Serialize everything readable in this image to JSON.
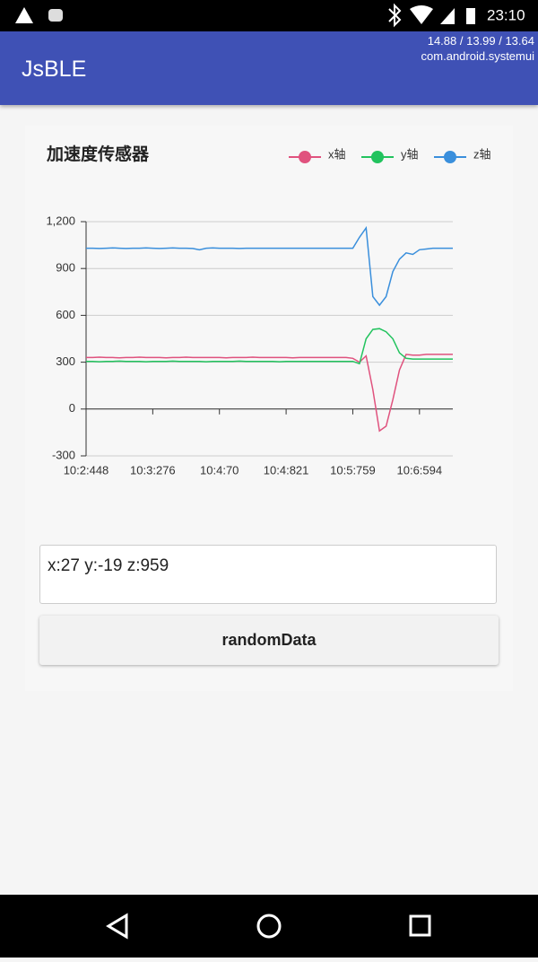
{
  "status_bar": {
    "time": "23:10"
  },
  "debug_overlay": {
    "fps": "14.88 / 13.99 / 13.64",
    "process": "com.android.systemui"
  },
  "app_bar": {
    "title": "JsBLE"
  },
  "chart_data": {
    "type": "line",
    "title": "加速度传感器",
    "categories": [
      "10:2:448",
      null,
      null,
      null,
      null,
      null,
      null,
      null,
      null,
      null,
      "10:3:276",
      null,
      null,
      null,
      null,
      null,
      null,
      null,
      null,
      null,
      "10:4:70",
      null,
      null,
      null,
      null,
      null,
      null,
      null,
      null,
      null,
      "10:4:821",
      null,
      null,
      null,
      null,
      null,
      null,
      null,
      null,
      null,
      "10:5:759",
      null,
      null,
      null,
      null,
      null,
      null,
      null,
      null,
      null,
      "10:6:594",
      null,
      null,
      null,
      null,
      null
    ],
    "series": [
      {
        "name": "x轴",
        "color": "#e0527e",
        "values": [
          330,
          330,
          332,
          330,
          330,
          328,
          330,
          330,
          332,
          330,
          330,
          330,
          328,
          330,
          330,
          332,
          330,
          330,
          330,
          330,
          330,
          328,
          330,
          330,
          330,
          332,
          330,
          330,
          330,
          330,
          330,
          328,
          330,
          330,
          330,
          330,
          330,
          330,
          330,
          330,
          325,
          300,
          340,
          125,
          -140,
          -110,
          60,
          250,
          350,
          345,
          345,
          350,
          350,
          350,
          350,
          350
        ]
      },
      {
        "name": "y轴",
        "color": "#22c35e",
        "values": [
          305,
          305,
          303,
          305,
          305,
          307,
          305,
          305,
          305,
          303,
          305,
          305,
          305,
          307,
          305,
          305,
          305,
          305,
          303,
          305,
          305,
          305,
          305,
          307,
          305,
          305,
          305,
          305,
          305,
          303,
          305,
          305,
          305,
          305,
          305,
          305,
          305,
          305,
          305,
          305,
          305,
          290,
          450,
          510,
          515,
          495,
          450,
          360,
          325,
          320,
          320,
          320,
          320,
          320,
          320,
          320
        ]
      },
      {
        "name": "z轴",
        "color": "#3a8fdc",
        "values": [
          1030,
          1030,
          1028,
          1030,
          1032,
          1030,
          1028,
          1030,
          1030,
          1032,
          1030,
          1028,
          1030,
          1032,
          1030,
          1030,
          1028,
          1020,
          1030,
          1032,
          1030,
          1030,
          1030,
          1028,
          1030,
          1030,
          1030,
          1030,
          1030,
          1030,
          1030,
          1030,
          1030,
          1030,
          1030,
          1030,
          1030,
          1030,
          1030,
          1030,
          1030,
          1100,
          1160,
          720,
          665,
          720,
          880,
          960,
          1000,
          990,
          1020,
          1025,
          1030,
          1030,
          1030,
          1030
        ]
      }
    ],
    "ylim": [
      -300,
      1200
    ],
    "yticks": [
      {
        "value": 1200,
        "label": "1,200"
      },
      900,
      600,
      300,
      0,
      -300
    ],
    "grid": true,
    "legend": "top-right"
  },
  "input": {
    "value": "x:27 y:-19 z:959"
  },
  "button": {
    "label": "randomData"
  }
}
